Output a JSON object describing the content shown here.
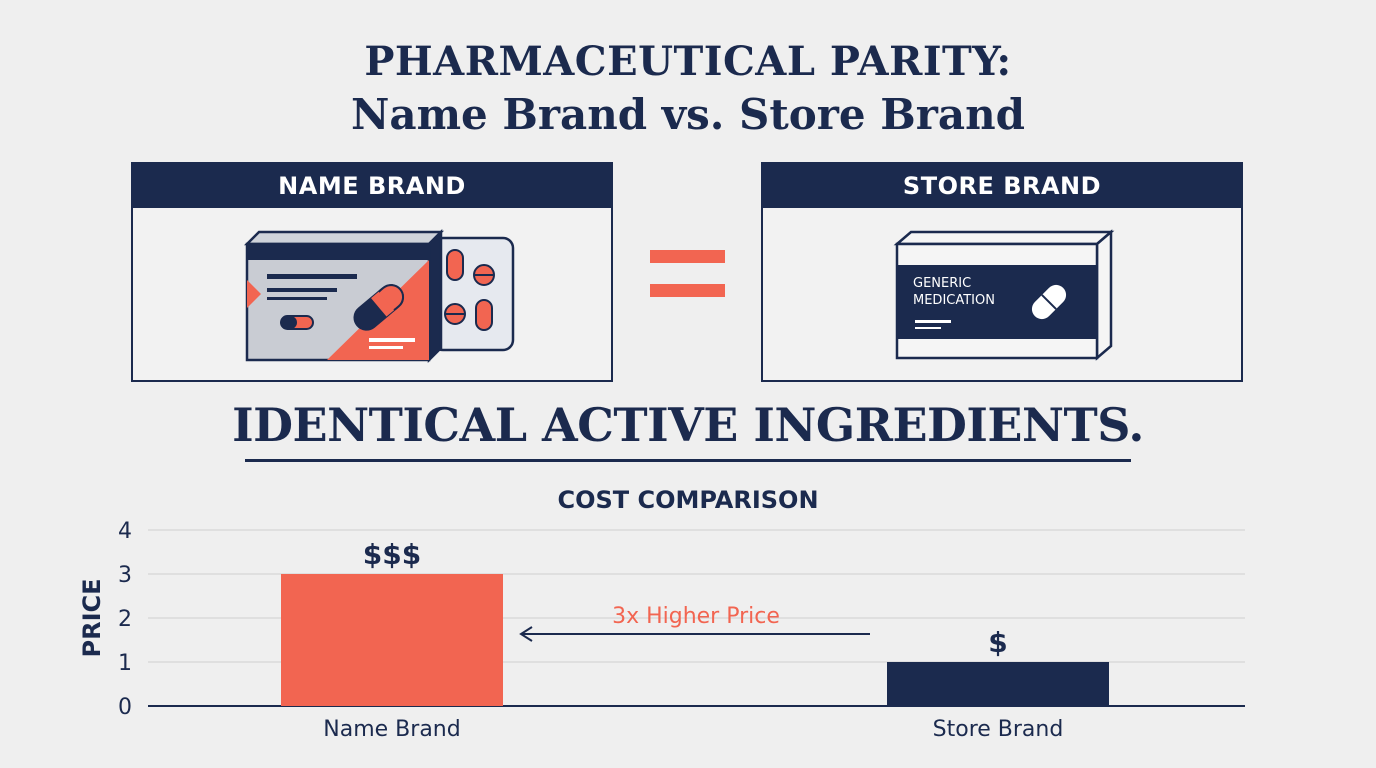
{
  "title_line1": "PHARMACEUTICAL PARITY:",
  "title_line2": "Name Brand vs. Store Brand",
  "panels": {
    "name_brand": {
      "header": "NAME BRAND"
    },
    "store_brand": {
      "header": "STORE BRAND",
      "package_label_line1": "GENERIC",
      "package_label_line2": "MEDICATION"
    }
  },
  "headline": "IDENTICAL ACTIVE INGREDIENTS.",
  "colors": {
    "navy": "#1b2a4e",
    "coral": "#f26551",
    "background": "#efefef"
  },
  "chart_data": {
    "type": "bar",
    "title": "COST COMPARISON",
    "ylabel": "PRICE",
    "xlabel": "",
    "categories": [
      "Name Brand",
      "Store Brand"
    ],
    "values": [
      3,
      1
    ],
    "data_labels": [
      "$$$",
      "$"
    ],
    "bar_colors": [
      "#f26551",
      "#1b2a4e"
    ],
    "yticks": [
      "0",
      "1",
      "2",
      "3",
      "4"
    ],
    "ylim": [
      0,
      4
    ],
    "grid": true,
    "annotation": {
      "text": "3x Higher Price",
      "arrow": "points toward Name Brand"
    }
  }
}
